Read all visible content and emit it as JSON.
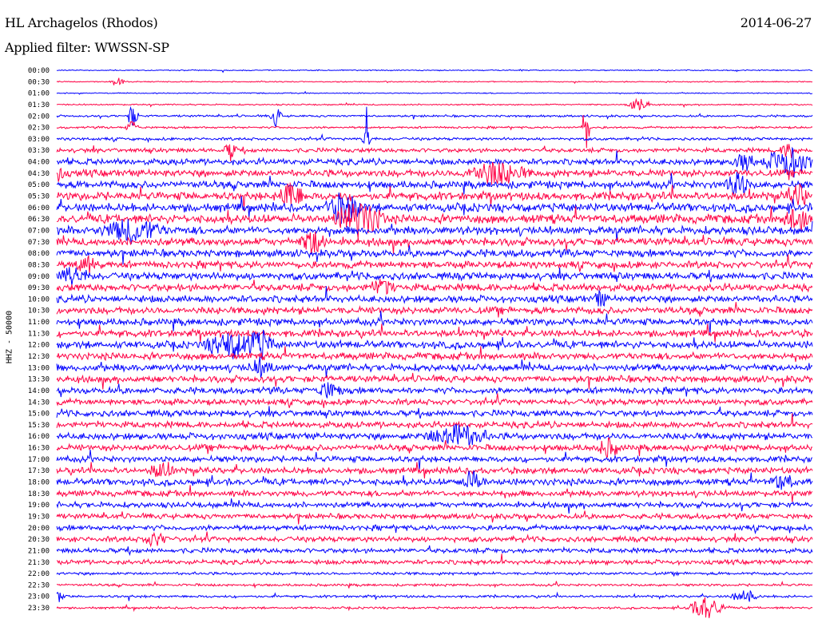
{
  "header": {
    "station": "HL Archagelos (Rhodos)",
    "date": "2014-06-27",
    "filter": "Applied filter: WWSSN-SP"
  },
  "chart_data": {
    "type": "line",
    "title": "HL Archagelos (Rhodos)",
    "ylabel": "HHZ - 50000",
    "xlabel": "",
    "row_colors": [
      "#0000ff",
      "#ff0044"
    ],
    "rows": [
      "00:00",
      "00:30",
      "01:00",
      "01:30",
      "02:00",
      "02:30",
      "03:00",
      "03:30",
      "04:00",
      "04:30",
      "05:00",
      "05:30",
      "06:00",
      "06:30",
      "07:00",
      "07:30",
      "08:00",
      "08:30",
      "09:00",
      "09:30",
      "10:00",
      "10:30",
      "11:00",
      "11:30",
      "12:00",
      "12:30",
      "13:00",
      "13:30",
      "14:00",
      "14:30",
      "15:00",
      "15:30",
      "16:00",
      "16:30",
      "17:00",
      "17:30",
      "18:00",
      "18:30",
      "19:00",
      "19:30",
      "20:00",
      "20:30",
      "21:00",
      "21:30",
      "22:00",
      "22:30",
      "23:00",
      "23:30"
    ],
    "noise_level": [
      0.6,
      0.6,
      0.6,
      0.8,
      1.2,
      1.2,
      1.6,
      2.4,
      3.5,
      4.0,
      4.2,
      4.6,
      4.8,
      5.0,
      4.6,
      4.4,
      4.2,
      4.0,
      4.2,
      4.2,
      4.0,
      4.0,
      4.0,
      4.0,
      4.2,
      4.0,
      4.0,
      3.8,
      3.6,
      3.4,
      3.6,
      3.6,
      3.8,
      3.6,
      3.4,
      3.6,
      3.8,
      3.4,
      3.2,
      3.0,
      3.0,
      3.0,
      2.8,
      2.6,
      1.6,
      1.4,
      1.4,
      1.2
    ],
    "events": [
      {
        "row": 1,
        "pos": 0.08,
        "amp": 6,
        "dur": 0.012
      },
      {
        "row": 3,
        "pos": 0.77,
        "amp": 8,
        "dur": 0.02
      },
      {
        "row": 4,
        "pos": 0.1,
        "amp": 14,
        "dur": 0.01
      },
      {
        "row": 4,
        "pos": 0.29,
        "amp": 12,
        "dur": 0.01
      },
      {
        "row": 5,
        "pos": 0.1,
        "amp": 9,
        "dur": 0.01
      },
      {
        "row": 5,
        "pos": 0.7,
        "amp": 40,
        "dur": 0.006
      },
      {
        "row": 6,
        "pos": 0.41,
        "amp": 40,
        "dur": 0.006
      },
      {
        "row": 7,
        "pos": 0.23,
        "amp": 12,
        "dur": 0.01
      },
      {
        "row": 7,
        "pos": 0.97,
        "amp": 10,
        "dur": 0.015
      },
      {
        "row": 8,
        "pos": 0.97,
        "amp": 18,
        "dur": 0.04
      },
      {
        "row": 8,
        "pos": 0.91,
        "amp": 10,
        "dur": 0.02
      },
      {
        "row": 9,
        "pos": 0.58,
        "amp": 14,
        "dur": 0.05
      },
      {
        "row": 9,
        "pos": 0.0,
        "amp": 12,
        "dur": 0.01
      },
      {
        "row": 10,
        "pos": 0.9,
        "amp": 14,
        "dur": 0.02
      },
      {
        "row": 11,
        "pos": 0.31,
        "amp": 18,
        "dur": 0.02
      },
      {
        "row": 11,
        "pos": 0.98,
        "amp": 14,
        "dur": 0.02
      },
      {
        "row": 12,
        "pos": 0.38,
        "amp": 18,
        "dur": 0.03
      },
      {
        "row": 13,
        "pos": 0.4,
        "amp": 22,
        "dur": 0.04
      },
      {
        "row": 13,
        "pos": 0.98,
        "amp": 20,
        "dur": 0.02
      },
      {
        "row": 14,
        "pos": 0.1,
        "amp": 14,
        "dur": 0.05
      },
      {
        "row": 15,
        "pos": 0.34,
        "amp": 14,
        "dur": 0.02
      },
      {
        "row": 17,
        "pos": 0.04,
        "amp": 10,
        "dur": 0.02
      },
      {
        "row": 18,
        "pos": 0.02,
        "amp": 10,
        "dur": 0.03
      },
      {
        "row": 19,
        "pos": 0.43,
        "amp": 10,
        "dur": 0.02
      },
      {
        "row": 20,
        "pos": 0.72,
        "amp": 10,
        "dur": 0.01
      },
      {
        "row": 24,
        "pos": 0.23,
        "amp": 16,
        "dur": 0.04
      },
      {
        "row": 24,
        "pos": 0.27,
        "amp": 18,
        "dur": 0.02
      },
      {
        "row": 26,
        "pos": 0.27,
        "amp": 10,
        "dur": 0.02
      },
      {
        "row": 28,
        "pos": 0.36,
        "amp": 10,
        "dur": 0.02
      },
      {
        "row": 32,
        "pos": 0.53,
        "amp": 14,
        "dur": 0.05
      },
      {
        "row": 33,
        "pos": 0.73,
        "amp": 10,
        "dur": 0.02
      },
      {
        "row": 35,
        "pos": 0.14,
        "amp": 10,
        "dur": 0.02
      },
      {
        "row": 36,
        "pos": 0.55,
        "amp": 12,
        "dur": 0.02
      },
      {
        "row": 36,
        "pos": 0.96,
        "amp": 10,
        "dur": 0.02
      },
      {
        "row": 41,
        "pos": 0.13,
        "amp": 8,
        "dur": 0.02
      },
      {
        "row": 46,
        "pos": 0.0,
        "amp": 10,
        "dur": 0.01
      },
      {
        "row": 46,
        "pos": 0.91,
        "amp": 10,
        "dur": 0.02
      },
      {
        "row": 47,
        "pos": 0.86,
        "amp": 14,
        "dur": 0.03
      }
    ]
  }
}
